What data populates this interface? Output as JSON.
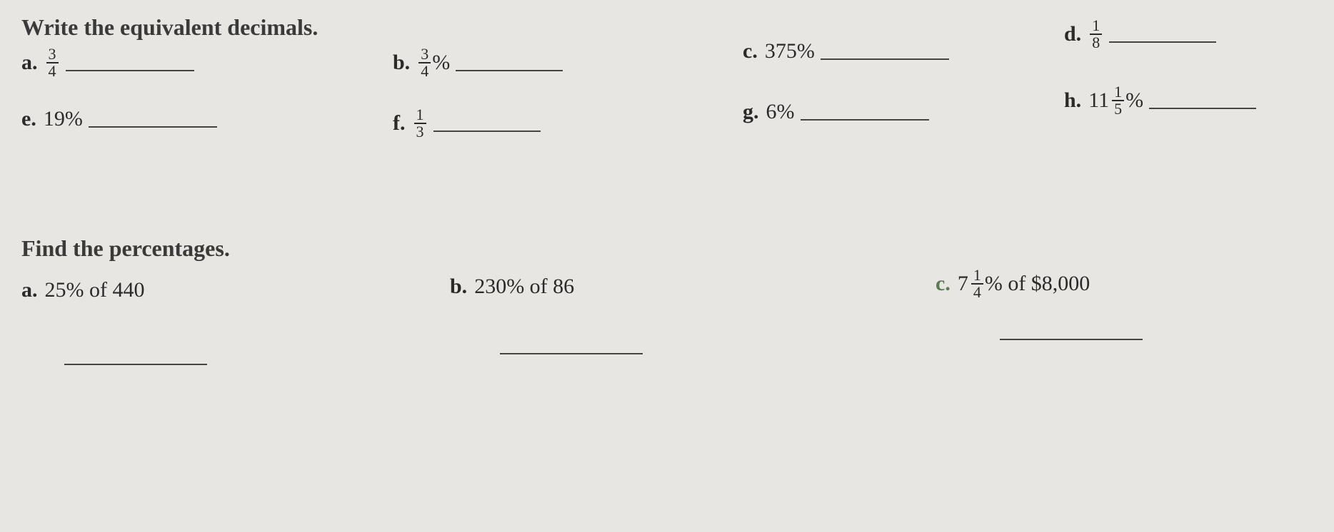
{
  "section1": {
    "heading": "Write the equivalent decimals.",
    "items": {
      "a": {
        "letter": "a.",
        "numerator": "3",
        "denominator": "4",
        "suffix": ""
      },
      "b": {
        "letter": "b.",
        "numerator": "3",
        "denominator": "4",
        "suffix": "%"
      },
      "c": {
        "letter": "c.",
        "text": "375%"
      },
      "d": {
        "letter": "d.",
        "numerator": "1",
        "denominator": "8",
        "suffix": ""
      },
      "e": {
        "letter": "e.",
        "text": "19%"
      },
      "f": {
        "letter": "f.",
        "numerator": "1",
        "denominator": "3",
        "suffix": ""
      },
      "g": {
        "letter": "g.",
        "text": "6%"
      },
      "h": {
        "letter": "h.",
        "whole": "11",
        "numerator": "1",
        "denominator": "5",
        "suffix": "%"
      }
    }
  },
  "section2": {
    "heading": "Find the percentages.",
    "items": {
      "a": {
        "letter": "a.",
        "text": "25% of 440"
      },
      "b": {
        "letter": "b.",
        "text": "230% of 86"
      },
      "c": {
        "letter": "c.",
        "whole": "7",
        "numerator": "1",
        "denominator": "4",
        "suffix": "% of $8,000"
      }
    }
  },
  "colors": {
    "background": "#e8e6e2",
    "text": "#2a2a2a",
    "accent_letter": "#5a7a55",
    "underline": "#444444"
  }
}
